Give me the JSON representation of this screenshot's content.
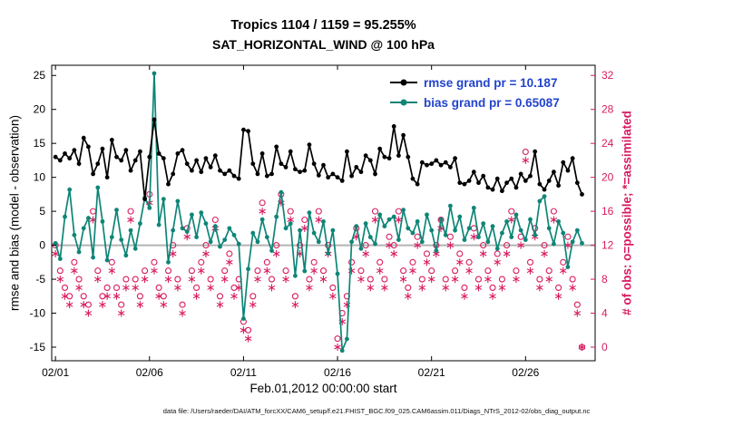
{
  "caption": "data file: /Users/raeder/DAI/ATM_forcXX/CAM6_setup/f.e21.FHIST_BGC.f09_025.CAM6assim.011/Diags_NTrS_2012-02/obs_diag_output.nc",
  "chart_data": {
    "type": "line",
    "title": "Tropics 1104 / 1159 = 95.255%",
    "subtitle": "SAT_HORIZONTAL_WIND @ 100 hPa",
    "xlabel": "Feb.01,2012 00:00:00 start",
    "ylabel_left": "rmse and bias (model - observation)",
    "ylabel_right": "# of obs: o=possible; *=assimilated",
    "x_start_day": 0,
    "x_step_days": 0.25,
    "xlim": [
      -0.2,
      28.7
    ],
    "ylim_left": [
      -17,
      26.5
    ],
    "ylim_right": [
      -1.6,
      33.2
    ],
    "xticks": {
      "positions": [
        0,
        5,
        10,
        15,
        20,
        25
      ],
      "labels": [
        "02/01",
        "02/06",
        "02/11",
        "02/16",
        "02/21",
        "02/26"
      ]
    },
    "yticks_left": [
      -15,
      -10,
      -5,
      0,
      5,
      10,
      15,
      20,
      25
    ],
    "yticks_right": [
      0,
      4,
      8,
      12,
      16,
      20,
      24,
      28,
      32
    ],
    "grid": false,
    "legend_position": "top-right-inside",
    "legend_text_color": "#2244cc",
    "zero_line": {
      "value": 0,
      "color": "#b3b3b3"
    },
    "series": [
      {
        "name": "rmse",
        "legend": "rmse grand pr = 10.187",
        "grand_pr": 10.187,
        "color": "#000000",
        "axis": "left",
        "values": [
          13,
          12.5,
          13.5,
          12.8,
          14,
          12,
          15.8,
          14.5,
          10.5,
          12,
          14.2,
          10,
          15.5,
          13,
          12.5,
          14,
          11,
          12.5,
          13.8,
          6.8,
          13,
          18.5,
          13.5,
          12.8,
          9,
          10.5,
          13.5,
          14,
          12,
          11,
          12.5,
          10.8,
          12.8,
          11.5,
          13.2,
          11,
          10.5,
          11,
          10.2,
          9.8,
          17,
          16.8,
          12,
          10.5,
          13.5,
          10.2,
          10.5,
          14.5,
          12,
          11.5,
          13.8,
          11.2,
          10.8,
          11,
          14.8,
          12,
          10.3,
          11.8,
          10,
          10.5,
          10,
          9.5,
          13.8,
          10.2,
          11.5,
          10.8,
          13.2,
          12.5,
          10.5,
          14.2,
          13,
          12.8,
          17.5,
          13.2,
          16.2,
          13,
          9.8,
          9,
          12.2,
          11.8,
          12,
          12.5,
          11.8,
          12.2,
          11.5,
          12.8,
          9.2,
          9,
          9.5,
          10.8,
          9.2,
          10.2,
          8.5,
          8.2,
          9.8,
          8,
          9.2,
          9.8,
          8.5,
          10.5,
          9.5,
          10.2,
          13.8,
          9,
          8.2,
          9.5,
          10.8,
          8.8,
          12.2,
          11,
          12.8,
          9.2,
          7.5
        ]
      },
      {
        "name": "bias",
        "legend": "bias grand pr = 0.65087",
        "grand_pr": 0.65087,
        "color": "#0e8577",
        "axis": "left",
        "values": [
          0.3,
          -2,
          4.2,
          8.2,
          1.5,
          -1,
          2.5,
          4,
          -1.8,
          8.5,
          3.5,
          -2.2,
          1.2,
          5.2,
          0.8,
          -1.5,
          2.2,
          -0.5,
          3.2,
          7,
          5.5,
          25.3,
          3,
          6.8,
          -2.5,
          2.2,
          6.5,
          2.5,
          2,
          4.5,
          1.2,
          4.8,
          3.2,
          0.5,
          2.8,
          -0.2,
          0.8,
          2.5,
          1.5,
          0.2,
          -10.8,
          -3.5,
          1.8,
          0.5,
          3.8,
          1.2,
          -0.8,
          4.2,
          7.8,
          2.5,
          3.2,
          -4.5,
          2.2,
          -3.8,
          4.8,
          1.8,
          0.5,
          3.5,
          -1.2,
          2.2,
          -4.2,
          -15.5,
          -13.8,
          0.5,
          2.8,
          -0.5,
          3.2,
          1.2,
          0.2,
          4.5,
          2.8,
          3.8,
          4.2,
          0.8,
          5.2,
          2.5,
          1.8,
          3.5,
          0.5,
          4.5,
          2.2,
          -0.8,
          3.8,
          1.5,
          5.8,
          2.2,
          4.2,
          0.8,
          2.5,
          5.5,
          1.2,
          3.2,
          0.5,
          2.8,
          -0.5,
          1.8,
          3.5,
          1.2,
          4.5,
          2.2,
          0.8,
          3.8,
          1.5,
          6.5,
          7.2,
          2.5,
          0.2,
          3.5,
          1.8,
          -3.2,
          0.5,
          2.2,
          0.3
        ]
      }
    ],
    "obs_series": [
      {
        "name": "possible",
        "marker": "o",
        "color": "#d81b60",
        "axis": "right",
        "values": [
          12,
          9,
          7,
          6,
          10,
          8,
          6,
          5,
          16,
          9,
          6,
          7,
          10,
          7,
          5,
          8,
          16,
          8,
          6,
          9,
          18,
          10,
          7,
          6,
          9,
          12,
          8,
          5,
          14,
          9,
          7,
          10,
          12,
          8,
          15,
          6,
          9,
          11,
          7,
          8,
          3,
          2,
          6,
          9,
          17,
          10,
          8,
          12,
          18,
          9,
          16,
          6,
          12,
          15,
          8,
          10,
          16,
          9,
          12,
          7,
          1,
          4,
          6,
          10,
          14,
          9,
          12,
          8,
          16,
          10,
          8,
          13,
          12,
          16,
          9,
          7,
          10,
          13,
          8,
          11,
          9,
          12,
          15,
          8,
          13,
          9,
          11,
          7,
          10,
          14,
          8,
          12,
          9,
          7,
          11,
          8,
          12,
          16,
          9,
          13,
          23,
          10,
          14,
          8,
          12,
          9,
          16,
          7,
          10,
          13,
          8,
          5,
          0
        ]
      },
      {
        "name": "assimilated",
        "marker": "*",
        "color": "#d81b60",
        "axis": "right",
        "values": [
          11,
          8,
          6,
          5,
          9,
          7,
          5,
          4,
          15,
          8,
          5,
          6,
          9,
          6,
          4,
          7,
          15,
          7,
          5,
          8,
          17,
          9,
          6,
          5,
          8,
          11,
          7,
          4,
          13,
          8,
          6,
          9,
          11,
          7,
          14,
          5,
          8,
          10,
          6,
          7,
          2,
          1,
          5,
          8,
          16,
          9,
          7,
          11,
          17,
          8,
          15,
          5,
          11,
          14,
          7,
          9,
          15,
          8,
          11,
          6,
          0,
          3,
          5,
          9,
          13,
          8,
          11,
          7,
          15,
          9,
          7,
          12,
          11,
          15,
          8,
          6,
          9,
          12,
          7,
          10,
          8,
          11,
          14,
          7,
          12,
          8,
          10,
          6,
          9,
          13,
          7,
          11,
          8,
          6,
          10,
          7,
          11,
          15,
          8,
          12,
          22,
          9,
          13,
          7,
          11,
          8,
          15,
          6,
          9,
          12,
          7,
          4,
          0
        ]
      }
    ]
  }
}
